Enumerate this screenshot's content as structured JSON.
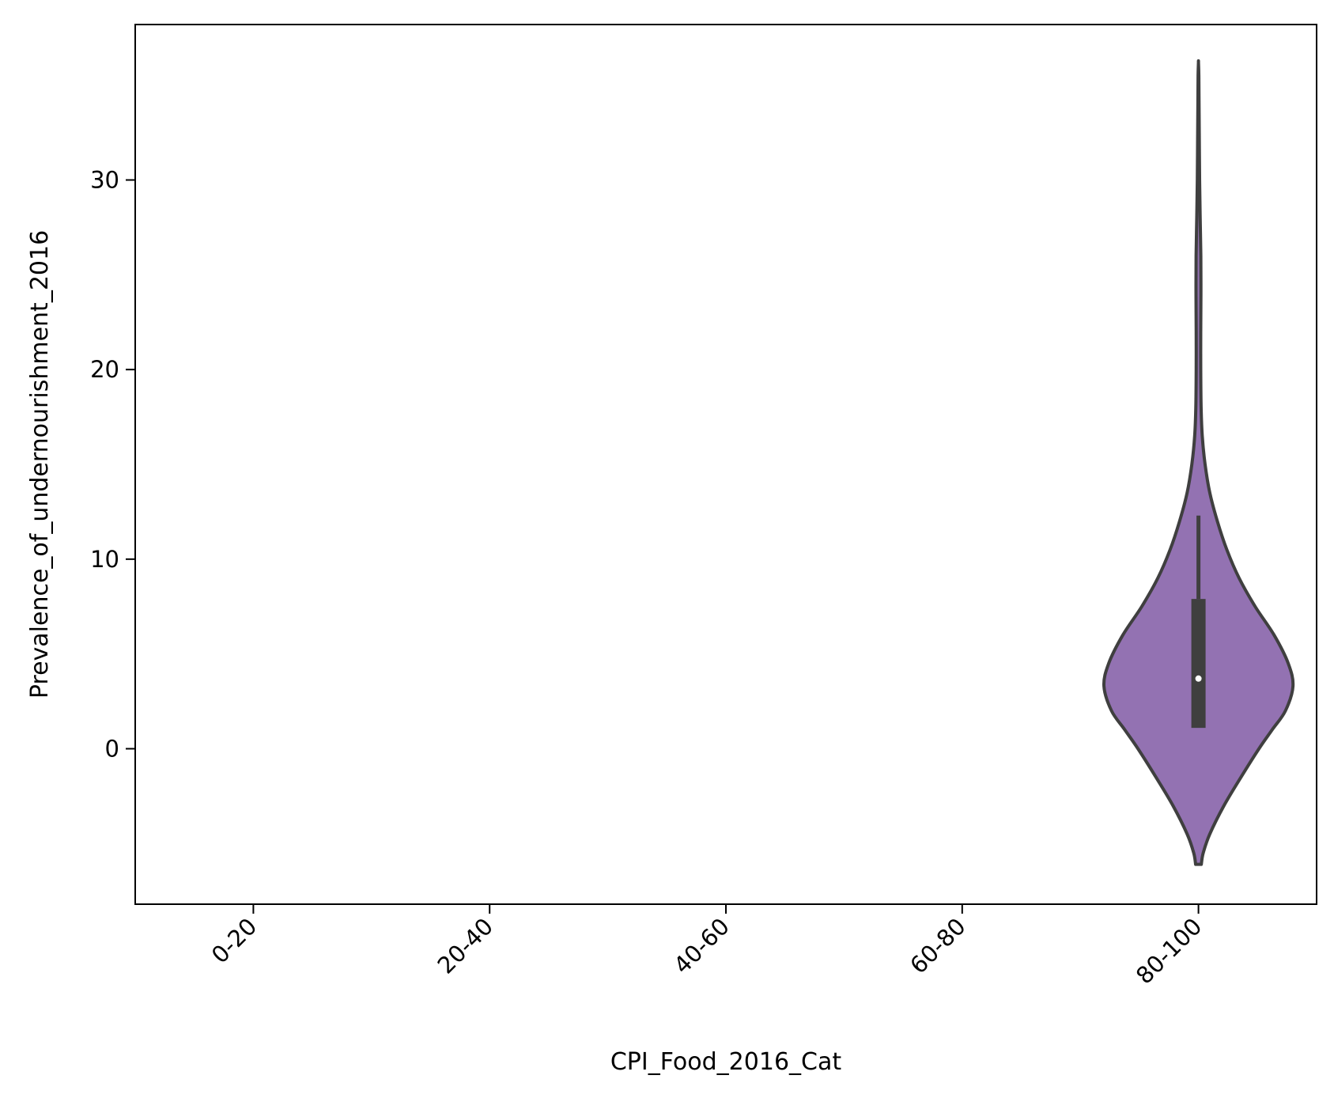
{
  "chart_data": {
    "type": "violin",
    "title": "",
    "xlabel": "CPI_Food_2016_Cat",
    "ylabel": "Prevalence_of_undernourishment_2016",
    "categories": [
      "0-20",
      "20-40",
      "40-60",
      "60-80",
      "80-100"
    ],
    "ylim": [
      -8.2,
      38.2
    ],
    "yticks": [
      0,
      10,
      20,
      30
    ],
    "grid": false,
    "legend": "none",
    "violin_color": "#9372b2",
    "edge_color": "#3f3f3f",
    "violins": [
      {
        "category": "80-100",
        "min_y": -6.1,
        "max_y": 36.2,
        "quartile_1": 1.1,
        "median": 3.7,
        "quartile_3": 7.9,
        "whisker_high": 12.3,
        "density_profile": [
          [
            -6.1,
            0.03
          ],
          [
            -5.5,
            0.05
          ],
          [
            -4.5,
            0.12
          ],
          [
            -3.0,
            0.27
          ],
          [
            -1.5,
            0.45
          ],
          [
            0.0,
            0.64
          ],
          [
            1.0,
            0.78
          ],
          [
            2.0,
            0.92
          ],
          [
            3.3,
            1.0
          ],
          [
            4.5,
            0.95
          ],
          [
            6.0,
            0.8
          ],
          [
            7.5,
            0.6
          ],
          [
            9.0,
            0.43
          ],
          [
            10.5,
            0.3
          ],
          [
            12.0,
            0.2
          ],
          [
            13.5,
            0.12
          ],
          [
            15.0,
            0.07
          ],
          [
            16.5,
            0.04
          ],
          [
            18.0,
            0.028
          ],
          [
            20.0,
            0.024
          ],
          [
            22.0,
            0.024
          ],
          [
            24.0,
            0.026
          ],
          [
            26.0,
            0.025
          ],
          [
            28.0,
            0.018
          ],
          [
            30.0,
            0.012
          ],
          [
            32.0,
            0.009
          ],
          [
            34.0,
            0.006
          ],
          [
            35.5,
            0.004
          ],
          [
            36.2,
            0.0
          ]
        ]
      }
    ]
  }
}
